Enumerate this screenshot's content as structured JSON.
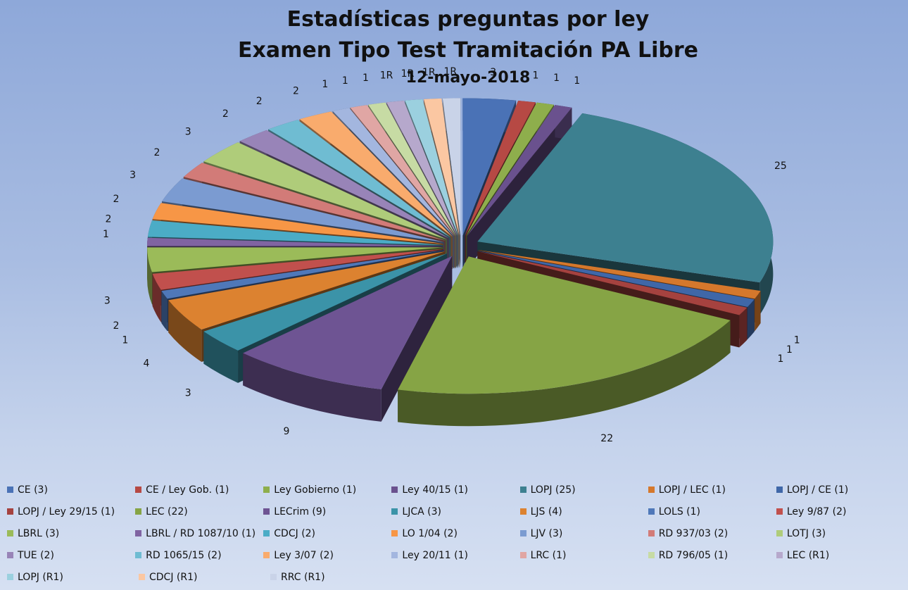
{
  "chart_data": {
    "type": "pie",
    "title_lines": [
      "Estadísticas preguntas por ley",
      "Examen Tipo Test Tramitación PA Libre"
    ],
    "subtitle": "12-mayo-2018",
    "legend_position": "bottom",
    "slices": [
      {
        "legend": "CE (3)",
        "value": 3,
        "label": "3",
        "color": "#4a72b6"
      },
      {
        "legend": "CE / Ley Gob. (1)",
        "value": 1,
        "label": "1",
        "color": "#b64944"
      },
      {
        "legend": "Ley Gobierno  (1)",
        "value": 1,
        "label": "1",
        "color": "#8eae4c"
      },
      {
        "legend": "Ley 40/15  (1)",
        "value": 1,
        "label": "1",
        "color": "#6a518e"
      },
      {
        "legend": "LOPJ (25)",
        "value": 25,
        "label": "25",
        "color": "#3d8090"
      },
      {
        "legend": "LOPJ / LEC (1)",
        "value": 1,
        "label": "1",
        "color": "#d5782c"
      },
      {
        "legend": "LOPJ / CE (1)",
        "value": 1,
        "label": "1",
        "color": "#3f67a8"
      },
      {
        "legend": "LOPJ / Ley 29/15 (1)",
        "value": 1,
        "label": "1",
        "color": "#a5423f"
      },
      {
        "legend": "LEC (22)",
        "value": 22,
        "label": "22",
        "color": "#86a445"
      },
      {
        "legend": "LECrim (9)",
        "value": 9,
        "label": "9",
        "color": "#6e5493"
      },
      {
        "legend": "LJCA (3)",
        "value": 3,
        "label": "3",
        "color": "#3b93a8"
      },
      {
        "legend": "LJS (4)",
        "value": 4,
        "label": "4",
        "color": "#dc8230"
      },
      {
        "legend": "LOLS (1)",
        "value": 1,
        "label": "1",
        "color": "#4f78b9"
      },
      {
        "legend": "Ley 9/87 (2)",
        "value": 2,
        "label": "2",
        "color": "#c1504d"
      },
      {
        "legend": "LBRL (3)",
        "value": 3,
        "label": "3",
        "color": "#9bbb59"
      },
      {
        "legend": "LBRL / RD 1087/10  (1)",
        "value": 1,
        "label": "1",
        "color": "#8064a2"
      },
      {
        "legend": "CDCJ (2)",
        "value": 2,
        "label": "2",
        "color": "#4bacc6"
      },
      {
        "legend": "LO 1/04  (2)",
        "value": 2,
        "label": "2",
        "color": "#f79646"
      },
      {
        "legend": "LJV (3)",
        "value": 3,
        "label": "3",
        "color": "#7b9bd1"
      },
      {
        "legend": "RD 937/03  (2)",
        "value": 2,
        "label": "2",
        "color": "#d27b78"
      },
      {
        "legend": "LOTJ (3)",
        "value": 3,
        "label": "3",
        "color": "#afcc7a"
      },
      {
        "legend": "TUE (2)",
        "value": 2,
        "label": "2",
        "color": "#9884b8"
      },
      {
        "legend": "RD 1065/15  (2)",
        "value": 2,
        "label": "2",
        "color": "#6fbcd2"
      },
      {
        "legend": "Ley 3/07  (2)",
        "value": 2,
        "label": "2",
        "color": "#f9ab6d"
      },
      {
        "legend": "Ley 20/11  (1)",
        "value": 1,
        "label": "1",
        "color": "#a3b6df"
      },
      {
        "legend": "LRC (1)",
        "value": 1,
        "label": "1",
        "color": "#e0a6a4"
      },
      {
        "legend": "RD 796/05  (1)",
        "value": 1,
        "label": "1",
        "color": "#c7dba4"
      },
      {
        "legend": "LEC (R1)",
        "value": 1,
        "label": "1R",
        "color": "#b6a8cc"
      },
      {
        "legend": "LOPJ (R1)",
        "value": 1,
        "label": "1R",
        "color": "#9bd0df"
      },
      {
        "legend": "CDCJ (R1)",
        "value": 1,
        "label": "1R",
        "color": "#fbc7a2"
      },
      {
        "legend": "RRC (R1)",
        "value": 1,
        "label": "1R",
        "color": "#c9d3e8"
      }
    ]
  }
}
